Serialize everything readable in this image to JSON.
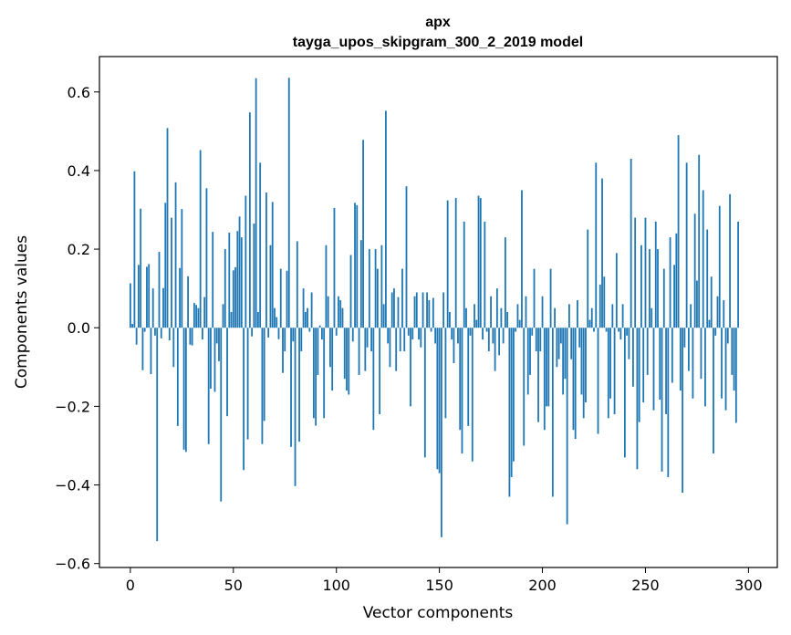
{
  "chart_data": {
    "type": "bar",
    "title": "apx",
    "subtitle": "tayga_upos_skipgram_300_2_2019 model",
    "xlabel": "Vector components",
    "ylabel": "Components values",
    "xlim": [
      -15,
      314
    ],
    "ylim": [
      -0.61,
      0.69
    ],
    "xticks": [
      0,
      50,
      100,
      150,
      200,
      250,
      300
    ],
    "yticks": [
      -0.6,
      -0.4,
      -0.2,
      0.0,
      0.2,
      0.4,
      0.6
    ],
    "ytick_labels": [
      "−0.6",
      "−0.4",
      "−0.2",
      "0.0",
      "0.2",
      "0.4",
      "0.6"
    ],
    "bar_color": "#1f77b4",
    "grid": false,
    "legend": "none",
    "values": [
      0.113,
      0.01,
      0.398,
      -0.043,
      0.16,
      0.303,
      -0.108,
      -0.01,
      0.155,
      0.162,
      -0.118,
      0.1,
      -0.02,
      -0.543,
      0.193,
      -0.027,
      0.101,
      0.318,
      0.508,
      -0.032,
      0.28,
      -0.1,
      0.37,
      -0.25,
      0.152,
      0.302,
      -0.31,
      -0.316,
      0.131,
      -0.043,
      -0.045,
      0.063,
      0.058,
      0.05,
      0.452,
      -0.03,
      0.078,
      0.355,
      -0.296,
      -0.155,
      0.244,
      -0.163,
      -0.04,
      -0.085,
      -0.442,
      0.06,
      0.2,
      -0.225,
      0.242,
      0.04,
      0.146,
      0.154,
      0.246,
      0.283,
      0.23,
      -0.362,
      0.336,
      -0.284,
      0.548,
      -0.022,
      0.265,
      0.635,
      0.04,
      0.42,
      -0.296,
      -0.237,
      0.344,
      -0.025,
      0.21,
      0.32,
      0.05,
      0.027,
      -0.029,
      0.15,
      -0.115,
      -0.06,
      0.145,
      0.636,
      -0.303,
      -0.035,
      -0.403,
      0.22,
      -0.29,
      -0.06,
      0.1,
      0.04,
      0.05,
      -0.01,
      0.09,
      -0.23,
      -0.249,
      -0.12,
      0.006,
      -0.03,
      -0.23,
      0.21,
      0.08,
      -0.1,
      -0.16,
      0.305,
      -0.02,
      0.08,
      0.07,
      0.05,
      -0.13,
      -0.16,
      -0.17,
      0.185,
      -0.035,
      0.318,
      0.312,
      -0.12,
      0.223,
      0.478,
      -0.11,
      -0.05,
      0.2,
      -0.06,
      -0.26,
      0.2,
      0.15,
      -0.22,
      0.21,
      0.06,
      0.552,
      -0.04,
      -0.1,
      0.09,
      0.1,
      -0.11,
      0.078,
      -0.06,
      0.15,
      -0.06,
      0.36,
      -0.02,
      -0.2,
      -0.03,
      0.08,
      0.09,
      -0.03,
      -0.05,
      0.09,
      -0.33,
      0.09,
      0.07,
      -0.01,
      0.076,
      -0.04,
      -0.36,
      -0.37,
      -0.533,
      0.09,
      -0.23,
      0.324,
      0.04,
      -0.03,
      -0.09,
      0.33,
      -0.04,
      -0.26,
      -0.32,
      0.27,
      0.05,
      -0.25,
      -0.02,
      -0.34,
      0.06,
      0.02,
      0.336,
      0.33,
      -0.03,
      0.27,
      -0.01,
      -0.06,
      0.08,
      -0.04,
      -0.11,
      0.1,
      -0.07,
      0.05,
      -0.04,
      0.23,
      0.04,
      -0.43,
      -0.38,
      -0.34,
      -0.01,
      0.06,
      0.02,
      0.35,
      -0.3,
      0.08,
      -0.17,
      -0.12,
      -0.02,
      0.15,
      -0.06,
      -0.24,
      -0.06,
      0.08,
      -0.26,
      -0.2,
      -0.2,
      0.15,
      -0.43,
      0.05,
      -0.1,
      -0.08,
      -0.04,
      -0.17,
      -0.13,
      -0.5,
      0.06,
      -0.08,
      -0.26,
      -0.283,
      0.07,
      -0.05,
      -0.17,
      -0.23,
      -0.19,
      0.25,
      0.02,
      0.05,
      -0.01,
      0.42,
      -0.27,
      0.11,
      0.38,
      0.13,
      -0.01,
      -0.23,
      -0.18,
      0.06,
      -0.22,
      0.19,
      -0.01,
      -0.03,
      0.06,
      -0.33,
      -0.02,
      -0.08,
      0.43,
      -0.15,
      0.28,
      -0.36,
      -0.24,
      0.21,
      -0.19,
      0.28,
      -0.12,
      0.2,
      0.05,
      -0.21,
      0.27,
      0.2,
      -0.183,
      -0.366,
      0.15,
      -0.22,
      -0.38,
      0.23,
      -0.14,
      0.16,
      0.24,
      0.49,
      -0.16,
      -0.42,
      -0.05,
      0.42,
      -0.11,
      0.06,
      -0.18,
      0.29,
      0.12,
      0.44,
      -0.13,
      0.35,
      -0.2,
      0.25,
      0.02,
      0.13,
      -0.32,
      -0.02,
      0.08,
      0.31,
      -0.18,
      0.07,
      -0.21,
      -0.04,
      0.34,
      -0.12,
      -0.16,
      -0.242,
      0.27
    ]
  }
}
